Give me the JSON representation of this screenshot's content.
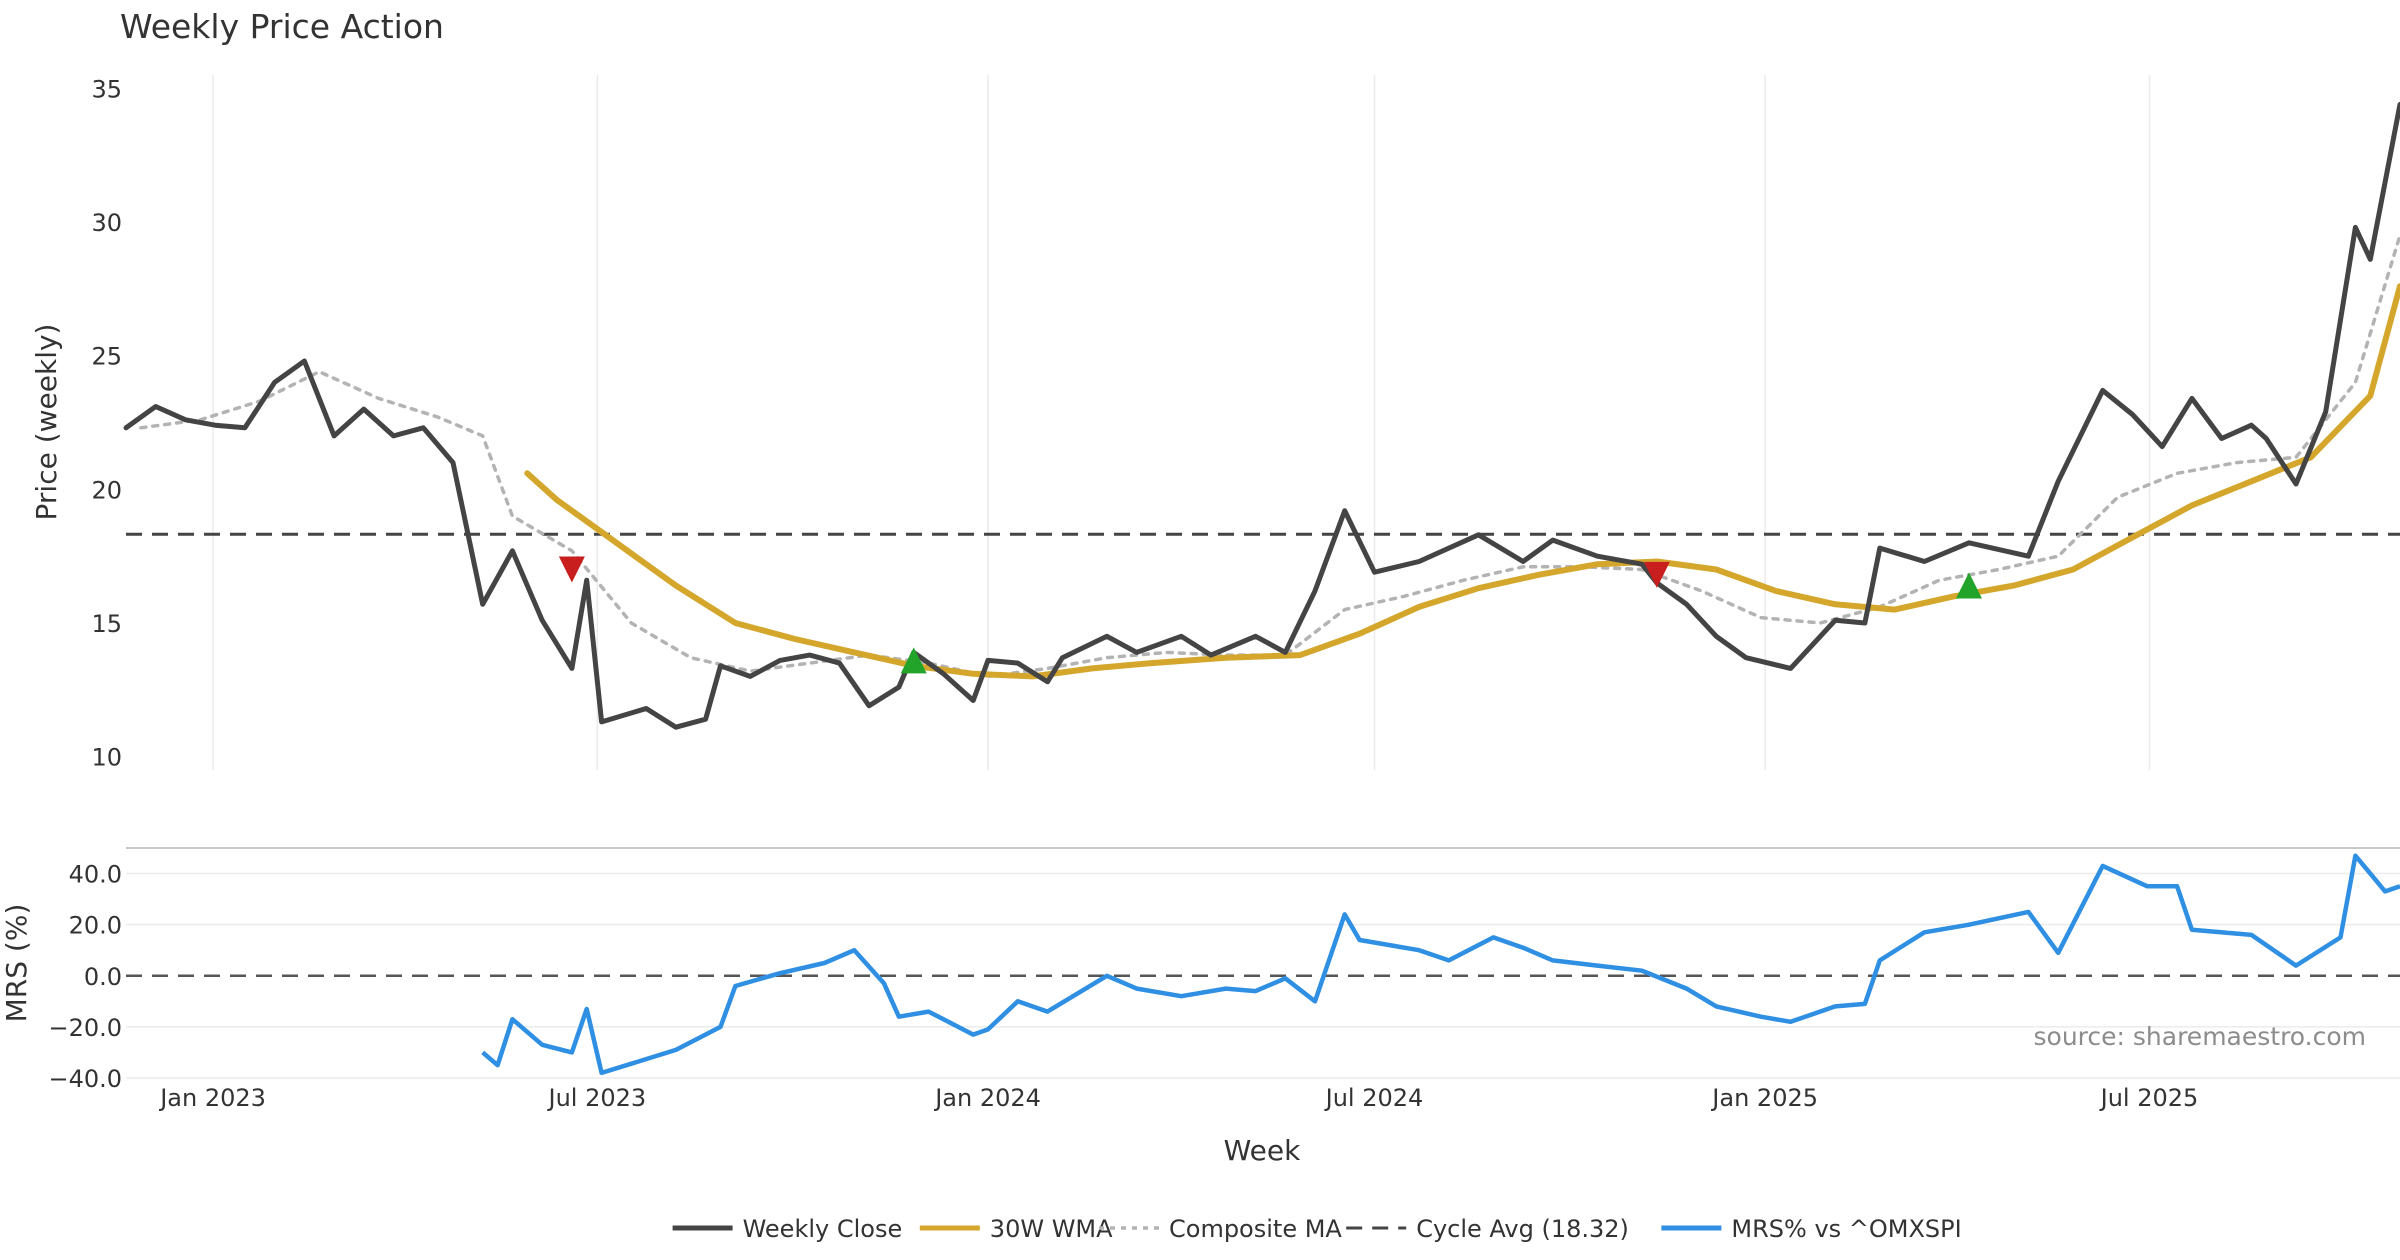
{
  "chart_data": [
    {
      "type": "line",
      "title": "Weekly Price Action",
      "ylabel": "Price (weekly)",
      "ylim": [
        9.5,
        35.5
      ],
      "yticks": [
        10,
        15,
        20,
        25,
        30,
        35
      ],
      "x_range": [
        "2022-11-21",
        "2025-10-27"
      ],
      "reference_line": {
        "name": "Cycle Avg (18.32)",
        "value": 18.32
      },
      "series": [
        {
          "name": "Weekly Close",
          "color": "#444444",
          "points": [
            [
              "2022-11-21",
              22.3
            ],
            [
              "2022-12-05",
              23.1
            ],
            [
              "2022-12-19",
              22.6
            ],
            [
              "2023-01-02",
              22.4
            ],
            [
              "2023-01-16",
              22.3
            ],
            [
              "2023-01-30",
              24.0
            ],
            [
              "2023-02-13",
              24.8
            ],
            [
              "2023-02-27",
              22.0
            ],
            [
              "2023-03-13",
              23.0
            ],
            [
              "2023-03-27",
              22.0
            ],
            [
              "2023-04-10",
              22.3
            ],
            [
              "2023-04-24",
              21.0
            ],
            [
              "2023-05-08",
              15.7
            ],
            [
              "2023-05-22",
              17.7
            ],
            [
              "2023-06-05",
              15.1
            ],
            [
              "2023-06-19",
              13.3
            ],
            [
              "2023-06-26",
              16.6
            ],
            [
              "2023-07-03",
              11.3
            ],
            [
              "2023-07-24",
              11.8
            ],
            [
              "2023-08-07",
              11.1
            ],
            [
              "2023-08-21",
              11.4
            ],
            [
              "2023-08-28",
              13.4
            ],
            [
              "2023-09-11",
              13.0
            ],
            [
              "2023-09-25",
              13.6
            ],
            [
              "2023-10-09",
              13.8
            ],
            [
              "2023-10-23",
              13.5
            ],
            [
              "2023-11-06",
              11.9
            ],
            [
              "2023-11-20",
              12.6
            ],
            [
              "2023-11-27",
              13.9
            ],
            [
              "2023-12-11",
              13.1
            ],
            [
              "2023-12-25",
              12.1
            ],
            [
              "2024-01-01",
              13.6
            ],
            [
              "2024-01-15",
              13.5
            ],
            [
              "2024-01-29",
              12.8
            ],
            [
              "2024-02-05",
              13.7
            ],
            [
              "2024-02-26",
              14.5
            ],
            [
              "2024-03-11",
              13.9
            ],
            [
              "2024-04-01",
              14.5
            ],
            [
              "2024-04-15",
              13.8
            ],
            [
              "2024-05-06",
              14.5
            ],
            [
              "2024-05-20",
              13.9
            ],
            [
              "2024-06-03",
              16.2
            ],
            [
              "2024-06-17",
              19.2
            ],
            [
              "2024-07-01",
              16.9
            ],
            [
              "2024-07-22",
              17.3
            ],
            [
              "2024-08-19",
              18.3
            ],
            [
              "2024-09-09",
              17.3
            ],
            [
              "2024-09-23",
              18.1
            ],
            [
              "2024-10-14",
              17.5
            ],
            [
              "2024-11-04",
              17.2
            ],
            [
              "2024-11-11",
              16.5
            ],
            [
              "2024-11-25",
              15.7
            ],
            [
              "2024-12-09",
              14.5
            ],
            [
              "2024-12-23",
              13.7
            ],
            [
              "2025-01-13",
              13.3
            ],
            [
              "2025-02-03",
              15.1
            ],
            [
              "2025-02-17",
              15.0
            ],
            [
              "2025-02-24",
              17.8
            ],
            [
              "2025-03-17",
              17.3
            ],
            [
              "2025-04-07",
              18.0
            ],
            [
              "2025-05-05",
              17.5
            ],
            [
              "2025-05-19",
              20.3
            ],
            [
              "2025-06-09",
              23.7
            ],
            [
              "2025-06-23",
              22.8
            ],
            [
              "2025-07-07",
              21.6
            ],
            [
              "2025-07-21",
              23.4
            ],
            [
              "2025-08-04",
              21.9
            ],
            [
              "2025-08-18",
              22.4
            ],
            [
              "2025-08-25",
              21.9
            ],
            [
              "2025-09-08",
              20.2
            ],
            [
              "2025-09-22",
              22.9
            ],
            [
              "2025-10-06",
              29.8
            ],
            [
              "2025-10-13",
              28.6
            ],
            [
              "2025-10-27",
              34.4
            ]
          ]
        },
        {
          "name": "30W WMA",
          "color": "#d4a72c",
          "points": [
            [
              "2023-05-29",
              20.6
            ],
            [
              "2023-06-12",
              19.6
            ],
            [
              "2023-07-03",
              18.4
            ],
            [
              "2023-08-07",
              16.4
            ],
            [
              "2023-09-04",
              15.0
            ],
            [
              "2023-10-02",
              14.4
            ],
            [
              "2023-10-30",
              13.9
            ],
            [
              "2023-11-27",
              13.4
            ],
            [
              "2023-12-25",
              13.1
            ],
            [
              "2024-01-22",
              13.0
            ],
            [
              "2024-02-19",
              13.3
            ],
            [
              "2024-03-18",
              13.5
            ],
            [
              "2024-04-22",
              13.7
            ],
            [
              "2024-05-27",
              13.8
            ],
            [
              "2024-06-24",
              14.6
            ],
            [
              "2024-07-22",
              15.6
            ],
            [
              "2024-08-19",
              16.3
            ],
            [
              "2024-09-16",
              16.8
            ],
            [
              "2024-10-14",
              17.2
            ],
            [
              "2024-11-11",
              17.3
            ],
            [
              "2024-12-09",
              17.0
            ],
            [
              "2025-01-06",
              16.2
            ],
            [
              "2025-02-03",
              15.7
            ],
            [
              "2025-03-03",
              15.5
            ],
            [
              "2025-03-31",
              16.0
            ],
            [
              "2025-04-28",
              16.4
            ],
            [
              "2025-05-26",
              17.0
            ],
            [
              "2025-06-23",
              18.2
            ],
            [
              "2025-07-21",
              19.4
            ],
            [
              "2025-08-18",
              20.3
            ],
            [
              "2025-09-15",
              21.2
            ],
            [
              "2025-10-13",
              23.5
            ],
            [
              "2025-10-27",
              27.6
            ]
          ]
        },
        {
          "name": "Composite MA",
          "color": "#b3b3b3",
          "points": [
            [
              "2022-11-28",
              22.3
            ],
            [
              "2022-12-26",
              22.6
            ],
            [
              "2023-01-23",
              23.3
            ],
            [
              "2023-02-20",
              24.4
            ],
            [
              "2023-03-20",
              23.4
            ],
            [
              "2023-04-17",
              22.7
            ],
            [
              "2023-05-08",
              22.0
            ],
            [
              "2023-05-22",
              19.0
            ],
            [
              "2023-06-19",
              17.7
            ],
            [
              "2023-07-17",
              15.0
            ],
            [
              "2023-08-14",
              13.7
            ],
            [
              "2023-09-11",
              13.2
            ],
            [
              "2023-10-09",
              13.5
            ],
            [
              "2023-11-06",
              13.8
            ],
            [
              "2023-12-04",
              13.5
            ],
            [
              "2024-01-01",
              13.0
            ],
            [
              "2024-01-29",
              13.3
            ],
            [
              "2024-02-26",
              13.7
            ],
            [
              "2024-03-25",
              13.9
            ],
            [
              "2024-04-22",
              13.8
            ],
            [
              "2024-05-20",
              13.8
            ],
            [
              "2024-06-17",
              15.5
            ],
            [
              "2024-07-15",
              16.0
            ],
            [
              "2024-08-12",
              16.6
            ],
            [
              "2024-09-09",
              17.1
            ],
            [
              "2024-10-07",
              17.1
            ],
            [
              "2024-11-04",
              17.0
            ],
            [
              "2024-12-02",
              16.2
            ],
            [
              "2024-12-30",
              15.2
            ],
            [
              "2025-01-27",
              15.0
            ],
            [
              "2025-02-24",
              15.6
            ],
            [
              "2025-03-24",
              16.6
            ],
            [
              "2025-04-21",
              17.0
            ],
            [
              "2025-05-19",
              17.5
            ],
            [
              "2025-06-16",
              19.7
            ],
            [
              "2025-07-14",
              20.6
            ],
            [
              "2025-08-11",
              21.0
            ],
            [
              "2025-09-08",
              21.2
            ],
            [
              "2025-10-06",
              24.0
            ],
            [
              "2025-10-27",
              29.5
            ]
          ]
        }
      ],
      "signals": [
        {
          "type": "sell",
          "x": "2023-06-19",
          "y": 17.0,
          "color": "#c81e1e"
        },
        {
          "type": "buy",
          "x": "2023-11-27",
          "y": 13.6,
          "color": "#22a32a"
        },
        {
          "type": "sell",
          "x": "2024-11-11",
          "y": 16.8,
          "color": "#c81e1e"
        },
        {
          "type": "buy",
          "x": "2025-04-07",
          "y": 16.4,
          "color": "#22a32a"
        }
      ]
    },
    {
      "type": "line",
      "ylabel": "MRS (%)",
      "ylim": [
        -40,
        50
      ],
      "yticks": [
        "40.0",
        "20.0",
        "0.0",
        "-20.0",
        "-40.0"
      ],
      "annotation": "source: sharemaestro.com",
      "x_tick_labels": [
        "Jan 2023",
        "Jul 2023",
        "Jan 2024",
        "Jul 2024",
        "Jan 2025",
        "Jul 2025"
      ],
      "x_ticks": [
        "2023-01-01",
        "2023-07-01",
        "2024-01-01",
        "2024-07-01",
        "2025-01-01",
        "2025-07-01"
      ],
      "xlabel": "Week",
      "series": [
        {
          "name": "MRS% vs ^OMXSPI",
          "color": "#2f8fe3",
          "points": [
            [
              "2023-05-08",
              -30
            ],
            [
              "2023-05-15",
              -35
            ],
            [
              "2023-05-22",
              -17
            ],
            [
              "2023-06-05",
              -27
            ],
            [
              "2023-06-19",
              -30
            ],
            [
              "2023-06-26",
              -13
            ],
            [
              "2023-07-03",
              -38
            ],
            [
              "2023-08-07",
              -29
            ],
            [
              "2023-08-28",
              -20
            ],
            [
              "2023-09-04",
              -4
            ],
            [
              "2023-09-25",
              1
            ],
            [
              "2023-10-16",
              5
            ],
            [
              "2023-10-30",
              10
            ],
            [
              "2023-11-13",
              -3
            ],
            [
              "2023-11-20",
              -16
            ],
            [
              "2023-12-04",
              -14
            ],
            [
              "2023-12-25",
              -23
            ],
            [
              "2024-01-01",
              -21
            ],
            [
              "2024-01-15",
              -10
            ],
            [
              "2024-01-29",
              -14
            ],
            [
              "2024-02-26",
              0
            ],
            [
              "2024-03-11",
              -5
            ],
            [
              "2024-04-01",
              -8
            ],
            [
              "2024-04-22",
              -5
            ],
            [
              "2024-05-06",
              -6
            ],
            [
              "2024-05-20",
              -1
            ],
            [
              "2024-06-03",
              -10
            ],
            [
              "2024-06-17",
              24
            ],
            [
              "2024-06-24",
              14
            ],
            [
              "2024-07-22",
              10
            ],
            [
              "2024-08-05",
              6
            ],
            [
              "2024-08-26",
              15
            ],
            [
              "2024-09-09",
              11
            ],
            [
              "2024-09-23",
              6
            ],
            [
              "2024-10-14",
              4
            ],
            [
              "2024-11-04",
              2
            ],
            [
              "2024-11-25",
              -5
            ],
            [
              "2024-12-09",
              -12
            ],
            [
              "2024-12-30",
              -16
            ],
            [
              "2025-01-13",
              -18
            ],
            [
              "2025-02-03",
              -12
            ],
            [
              "2025-02-17",
              -11
            ],
            [
              "2025-02-24",
              6
            ],
            [
              "2025-03-17",
              17
            ],
            [
              "2025-04-07",
              20
            ],
            [
              "2025-05-05",
              25
            ],
            [
              "2025-05-19",
              9
            ],
            [
              "2025-06-09",
              43
            ],
            [
              "2025-06-30",
              35
            ],
            [
              "2025-07-14",
              35
            ],
            [
              "2025-07-21",
              18
            ],
            [
              "2025-08-18",
              16
            ],
            [
              "2025-09-08",
              4
            ],
            [
              "2025-09-29",
              15
            ],
            [
              "2025-10-06",
              47
            ],
            [
              "2025-10-13",
              40
            ],
            [
              "2025-10-20",
              33
            ],
            [
              "2025-10-27",
              35
            ]
          ]
        }
      ]
    }
  ],
  "legend": [
    {
      "label": "Weekly Close",
      "style": "solid",
      "color": "#444444"
    },
    {
      "label": "30W WMA",
      "style": "solid",
      "color": "#d4a72c"
    },
    {
      "label": "Composite MA",
      "style": "dotted",
      "color": "#b3b3b3"
    },
    {
      "label": "Cycle Avg (18.32)",
      "style": "dashed",
      "color": "#444444"
    },
    {
      "label": "MRS% vs ^OMXSPI",
      "style": "solid",
      "color": "#2f8fe3"
    }
  ]
}
